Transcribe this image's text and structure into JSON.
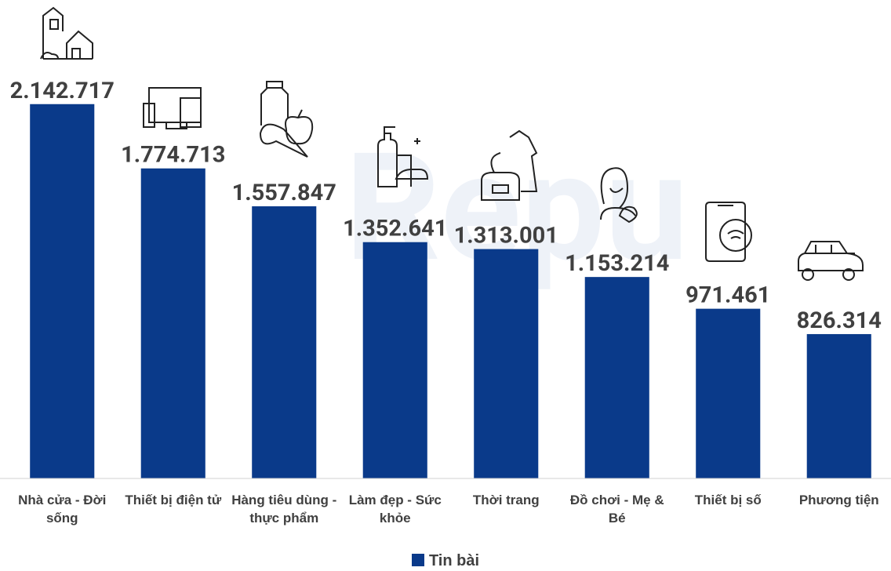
{
  "chart_data": {
    "type": "bar",
    "categories": [
      "Nhà cửa - Đời sống",
      "Thiết bị điện tử",
      "Hàng tiêu dùng - thực phẩm",
      "Làm đẹp - Sức khỏe",
      "Thời trang",
      "Đồ chơi - Mẹ & Bé",
      "Thiết bị số",
      "Phương tiện"
    ],
    "series": [
      {
        "name": "Tin bài",
        "color": "#0a3a8a",
        "values": [
          2142717,
          1774713,
          1557847,
          1352641,
          1313001,
          1153214,
          971461,
          826314
        ],
        "value_labels": [
          "2.142.717",
          "1.774.713",
          "1.557.847",
          "1.352.641",
          "1.313.001",
          "1.153.214",
          "971.461",
          "826.314"
        ]
      }
    ],
    "ylim": [
      0,
      2200000
    ],
    "legend": "bottom",
    "watermark": "Repu"
  }
}
